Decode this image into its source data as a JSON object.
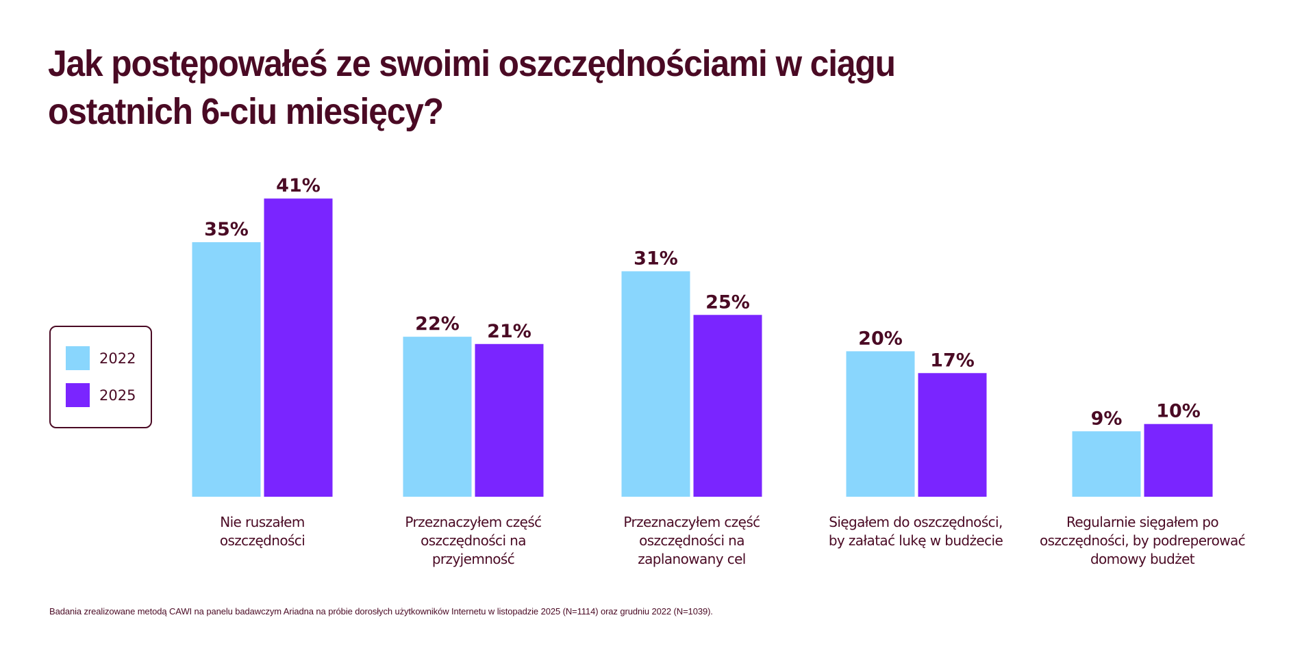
{
  "title_line1": "Jak postępowałeś ze swoimi oszczędnościami w ciągu",
  "title_line2": "ostatnich 6-ciu miesięcy?",
  "legend": [
    {
      "label": "2022",
      "color": "#89d6fd"
    },
    {
      "label": "2025",
      "color": "#7a25ff"
    }
  ],
  "footnote": "Badania zrealizowane metodą CAWI na panelu badawczym Ariadna na próbie dorosłych użytkowników Internetu w listopadzie 2025 (N=1114) oraz grudniu 2022 (N=1039).",
  "chart_data": {
    "type": "bar",
    "title": "Jak postępowałeś ze swoimi oszczędnościami w ciągu ostatnich 6-ciu miesięcy?",
    "xlabel": "",
    "ylabel": "",
    "ylim": [
      0,
      45
    ],
    "grid": false,
    "legend_position": "left",
    "categories": [
      "Nie ruszałem\noszczędności",
      "Przeznaczyłem część\noszczędności na\nprzyjemność",
      "Przeznaczyłem część\noszczędności na\nzaplanowany cel",
      "Sięgałem do oszczędności,\nby załatać lukę w budżecie",
      "Regularnie sięgałem po\noszczędności, by podreperować\ndomowy budżet"
    ],
    "series": [
      {
        "name": "2022",
        "color": "#89d6fd",
        "values": [
          35,
          22,
          31,
          20,
          9
        ],
        "labels": [
          "35%",
          "22%",
          "31%",
          "20%",
          "9%"
        ]
      },
      {
        "name": "2025",
        "color": "#7a25ff",
        "values": [
          41,
          21,
          25,
          17,
          10
        ],
        "labels": [
          "41%",
          "21%",
          "25%",
          "17%",
          "10%"
        ]
      }
    ]
  }
}
